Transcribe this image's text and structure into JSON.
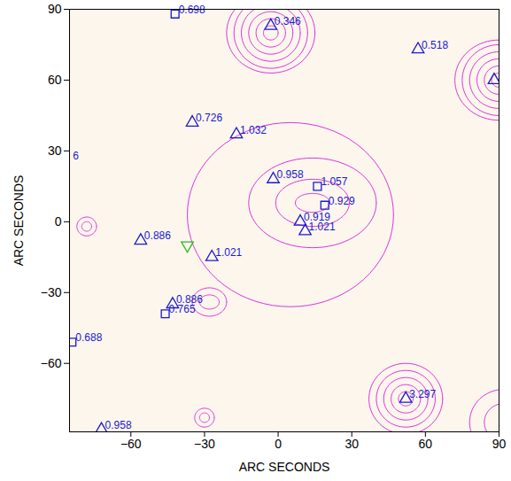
{
  "chart_data": {
    "type": "scatter",
    "x_label": "ARC SECONDS",
    "y_label": "ARC SECONDS",
    "xlim": [
      -85,
      90
    ],
    "ylim": [
      -89,
      90
    ],
    "xticks": [
      -60,
      -30,
      0,
      30,
      60,
      90
    ],
    "yticks": [
      -60,
      -30,
      0,
      30,
      60,
      90
    ],
    "grid": false,
    "series": [
      {
        "marker": "triangle",
        "color": "#1a1acc",
        "x": [
          -3,
          57,
          -35,
          -17,
          -2,
          9,
          11,
          -56,
          -27,
          -43,
          52,
          -72,
          88
        ],
        "y": [
          83,
          73,
          42,
          37,
          18,
          0,
          -4,
          -8,
          -15,
          -35,
          -75,
          -88,
          60
        ],
        "labels": [
          "0.346",
          "0.518",
          "0.726",
          "1.032",
          "0.958",
          "0.919",
          "1.021",
          "0.886",
          "1.021",
          "0.886",
          "3.297",
          "0.958",
          null
        ]
      },
      {
        "marker": "square",
        "color": "#1a1acc",
        "x": [
          -42,
          16,
          19,
          -46,
          -84
        ],
        "y": [
          88,
          15,
          7,
          -39,
          -51
        ],
        "labels": [
          "0.698",
          "1.057",
          "0.929",
          "0.765",
          "0.688"
        ]
      },
      {
        "marker": "inverted_triangle",
        "color": "#22bb22",
        "x": [
          -37
        ],
        "y": [
          -10
        ],
        "labels": [
          null
        ]
      }
    ],
    "annotations": [
      {
        "text": "6",
        "x": -84,
        "y": 28
      }
    ],
    "contours": {
      "color": "#dd33dd",
      "items": [
        {
          "x": -3,
          "y": 80,
          "rx": [
            3,
            6,
            9,
            12,
            15,
            18
          ],
          "ry": [
            3,
            6,
            9,
            12,
            15,
            17
          ]
        },
        {
          "x": 90,
          "y": 60,
          "rx": [
            3,
            6,
            9,
            12,
            15,
            18
          ],
          "ry": [
            3,
            6,
            9,
            12,
            15,
            17
          ]
        },
        {
          "x": 52,
          "y": -75,
          "rx": [
            3,
            6,
            9,
            12,
            15
          ],
          "ry": [
            3,
            6,
            9,
            12,
            15
          ]
        },
        {
          "x": 92,
          "y": -85,
          "rx": [
            8,
            14
          ],
          "ry": [
            8,
            14
          ]
        },
        {
          "x": -78,
          "y": -2,
          "rx": [
            2,
            4
          ],
          "ry": [
            2,
            4
          ]
        },
        {
          "x": -30,
          "y": -83,
          "rx": [
            2,
            4
          ],
          "ry": [
            2,
            4
          ]
        },
        {
          "x": 14,
          "y": 8,
          "rx": [
            7,
            15,
            26
          ],
          "ry": [
            4,
            10,
            19
          ]
        },
        {
          "x": 5,
          "y": 3,
          "rx": [
            42
          ],
          "ry": [
            39
          ]
        },
        {
          "x": -28,
          "y": -34,
          "rx": [
            4,
            7
          ],
          "ry": [
            3,
            6
          ]
        }
      ]
    }
  }
}
